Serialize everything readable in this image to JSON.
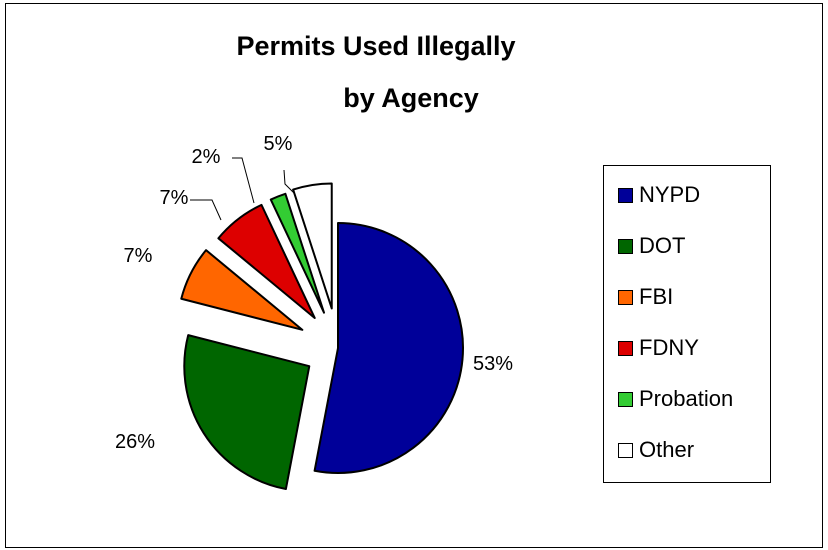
{
  "chart_data": {
    "type": "pie",
    "title_line1": "Permits Used Illegally",
    "title_line2": "by Agency",
    "slices": [
      {
        "name": "NYPD",
        "value": 53,
        "label": "53%",
        "color": "#000099"
      },
      {
        "name": "DOT",
        "value": 26,
        "label": "26%",
        "color": "#006600"
      },
      {
        "name": "FBI",
        "value": 7,
        "label": "7%",
        "color": "#FF6600"
      },
      {
        "name": "FDNY",
        "value": 7,
        "label": "7%",
        "color": "#DD0000"
      },
      {
        "name": "Probation",
        "value": 2,
        "label": "2%",
        "color": "#33CC33"
      },
      {
        "name": "Other",
        "value": 5,
        "label": "5%",
        "color": "#FFFFFF"
      }
    ],
    "legend_position": "right",
    "exploded": true
  }
}
